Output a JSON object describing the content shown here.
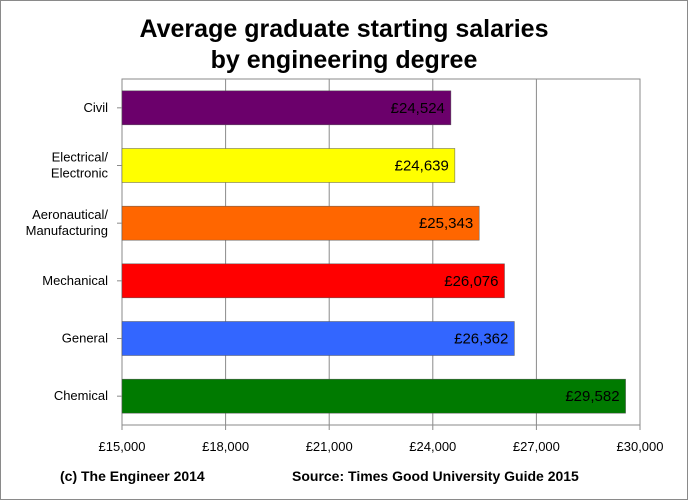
{
  "chart_data": {
    "type": "bar",
    "orientation": "horizontal",
    "title_lines": [
      "Average graduate starting salaries",
      "by engineering degree"
    ],
    "categories": [
      [
        "Civil"
      ],
      [
        "Electrical/",
        "Electronic"
      ],
      [
        "Aeronautical/",
        "Manufacturing"
      ],
      [
        "Mechanical"
      ],
      [
        "General"
      ],
      [
        "Chemical"
      ]
    ],
    "values": [
      24524,
      24639,
      25343,
      26076,
      26362,
      29582
    ],
    "value_labels": [
      "£24,524",
      "£24,639",
      "£25,343",
      "£26,076",
      "£26,362",
      "£29,582"
    ],
    "colors": [
      "#6b006b",
      "#ffff00",
      "#ff6600",
      "#ff0000",
      "#3366ff",
      "#007a00"
    ],
    "xlim": [
      15000,
      30000
    ],
    "x_ticks": [
      15000,
      18000,
      21000,
      24000,
      27000,
      30000
    ],
    "x_tick_labels": [
      "£15,000",
      "£18,000",
      "£21,000",
      "£24,000",
      "£27,000",
      "£30,000"
    ],
    "grid": true,
    "xlabel": "",
    "ylabel": ""
  },
  "footer": {
    "copyright": "(c) The Engineer 2014",
    "source": "Source: Times Good University Guide 2015"
  }
}
